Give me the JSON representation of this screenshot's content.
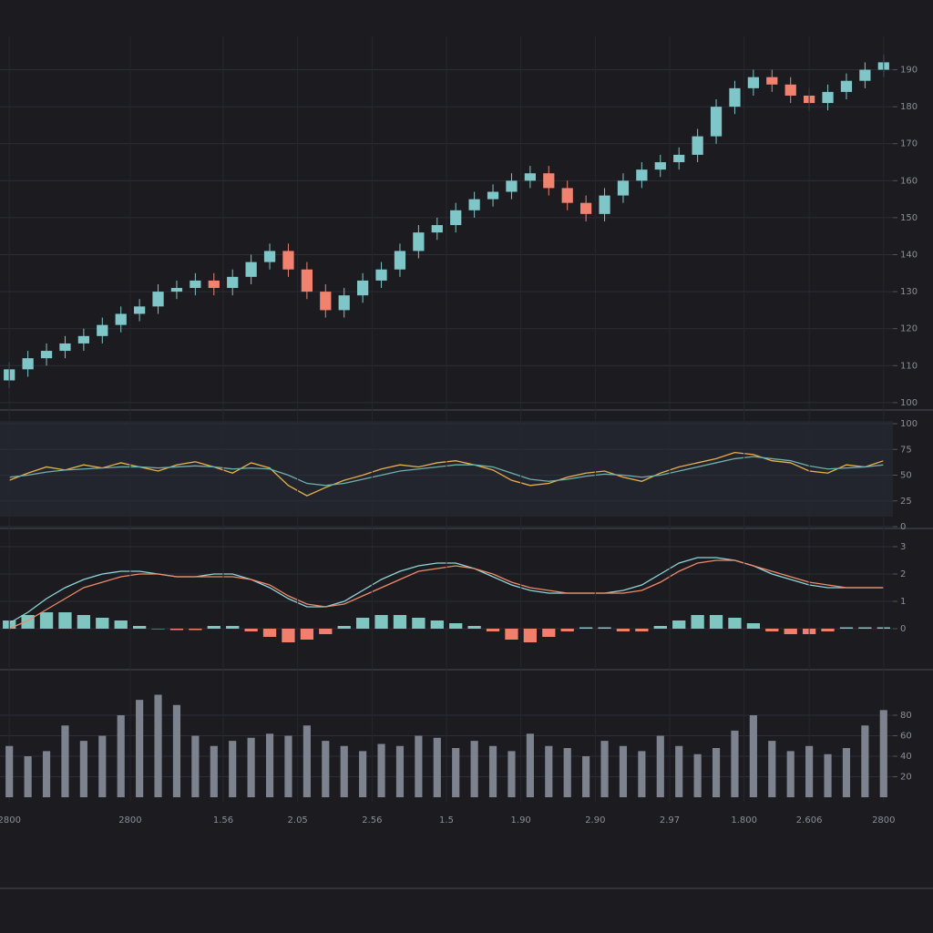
{
  "chart_data": [
    {
      "type": "candlestick",
      "up_color": "#7fc6c8",
      "down_color": "#f0826f",
      "open": [
        106,
        109,
        112,
        114,
        116,
        118,
        121,
        124,
        126,
        130,
        131,
        133,
        131,
        134,
        138,
        141,
        136,
        130,
        125,
        129,
        133,
        136,
        141,
        146,
        148,
        152,
        155,
        157,
        160,
        162,
        158,
        154,
        151,
        156,
        160,
        163,
        165,
        167,
        172,
        180,
        185,
        188,
        186,
        183,
        181,
        184,
        187,
        190
      ],
      "high": [
        111,
        114,
        116,
        118,
        120,
        123,
        126,
        128,
        132,
        133,
        135,
        135,
        136,
        140,
        143,
        143,
        138,
        132,
        131,
        135,
        138,
        143,
        148,
        150,
        154,
        157,
        159,
        162,
        164,
        164,
        160,
        156,
        158,
        162,
        165,
        167,
        169,
        174,
        182,
        187,
        190,
        190,
        188,
        185,
        186,
        189,
        192,
        194
      ],
      "low": [
        104,
        107,
        110,
        112,
        114,
        116,
        119,
        122,
        124,
        128,
        129,
        129,
        129,
        132,
        136,
        134,
        128,
        123,
        123,
        127,
        131,
        134,
        139,
        144,
        146,
        150,
        153,
        155,
        158,
        156,
        152,
        149,
        149,
        154,
        158,
        161,
        163,
        165,
        170,
        178,
        183,
        184,
        181,
        179,
        179,
        182,
        185,
        188
      ],
      "close": [
        109,
        112,
        114,
        116,
        118,
        121,
        124,
        126,
        130,
        131,
        133,
        131,
        134,
        138,
        141,
        136,
        130,
        125,
        129,
        133,
        136,
        141,
        146,
        148,
        152,
        155,
        157,
        160,
        162,
        158,
        154,
        151,
        156,
        160,
        163,
        165,
        167,
        172,
        180,
        185,
        188,
        186,
        183,
        181,
        184,
        187,
        190,
        192
      ],
      "xlim": [
        -0.5,
        47.5
      ],
      "ylim": [
        98,
        199
      ],
      "yticks": [
        100,
        110,
        120,
        130,
        140,
        150,
        160,
        170,
        180,
        190
      ]
    },
    {
      "type": "line",
      "xlim": [
        -0.5,
        47.5
      ],
      "ylim": [
        0,
        100
      ],
      "yticks": [
        0,
        25,
        50,
        75,
        100
      ],
      "series": [
        {
          "color": "#e8b04a",
          "values": [
            45,
            52,
            58,
            55,
            60,
            57,
            62,
            58,
            54,
            60,
            63,
            58,
            52,
            62,
            57,
            40,
            30,
            38,
            45,
            50,
            56,
            60,
            58,
            62,
            64,
            60,
            55,
            45,
            40,
            42,
            48,
            52,
            54,
            48,
            44,
            52,
            58,
            62,
            66,
            72,
            70,
            64,
            62,
            54,
            52,
            60,
            58,
            64
          ]
        },
        {
          "color": "#6fb0ad",
          "values": [
            48,
            50,
            53,
            55,
            56,
            57,
            58,
            58,
            57,
            58,
            59,
            58,
            56,
            57,
            56,
            50,
            42,
            40,
            42,
            46,
            50,
            54,
            56,
            58,
            60,
            60,
            58,
            52,
            46,
            44,
            46,
            49,
            51,
            50,
            48,
            50,
            54,
            58,
            62,
            66,
            68,
            66,
            64,
            59,
            56,
            57,
            58,
            60
          ]
        }
      ]
    },
    {
      "type": "combo",
      "xlim": [
        -0.5,
        47.5
      ],
      "ylim": [
        -1.5,
        3.5
      ],
      "yticks": [
        0,
        1,
        2,
        3
      ],
      "series": [
        {
          "type": "bar",
          "color": "#7fc6c0",
          "negative_color": "#f0806c",
          "values": [
            0.3,
            0.5,
            0.6,
            0.6,
            0.5,
            0.4,
            0.3,
            0.1,
            0.0,
            -0.05,
            -0.05,
            0.1,
            0.1,
            -0.1,
            -0.3,
            -0.5,
            -0.4,
            -0.2,
            0.1,
            0.4,
            0.5,
            0.5,
            0.4,
            0.3,
            0.2,
            0.1,
            -0.1,
            -0.4,
            -0.5,
            -0.3,
            -0.1,
            0.05,
            0.05,
            -0.1,
            -0.1,
            0.1,
            0.3,
            0.5,
            0.5,
            0.4,
            0.2,
            -0.1,
            -0.2,
            -0.2,
            -0.1,
            0.05,
            0.05,
            0.05
          ]
        },
        {
          "type": "line",
          "color": "#8fd6da",
          "values": [
            0.2,
            0.6,
            1.1,
            1.5,
            1.8,
            2.0,
            2.1,
            2.1,
            2.0,
            1.9,
            1.9,
            2.0,
            2.0,
            1.8,
            1.5,
            1.1,
            0.8,
            0.8,
            1.0,
            1.4,
            1.8,
            2.1,
            2.3,
            2.4,
            2.4,
            2.2,
            1.9,
            1.6,
            1.4,
            1.3,
            1.3,
            1.3,
            1.3,
            1.4,
            1.6,
            2.0,
            2.4,
            2.6,
            2.6,
            2.5,
            2.3,
            2.0,
            1.8,
            1.6,
            1.5,
            1.5,
            1.5,
            1.5
          ]
        },
        {
          "type": "line",
          "color": "#f08a6a",
          "values": [
            0.0,
            0.3,
            0.7,
            1.1,
            1.5,
            1.7,
            1.9,
            2.0,
            2.0,
            1.9,
            1.9,
            1.9,
            1.9,
            1.8,
            1.6,
            1.2,
            0.9,
            0.8,
            0.9,
            1.2,
            1.5,
            1.8,
            2.1,
            2.2,
            2.3,
            2.2,
            2.0,
            1.7,
            1.5,
            1.4,
            1.3,
            1.3,
            1.3,
            1.3,
            1.4,
            1.7,
            2.1,
            2.4,
            2.5,
            2.5,
            2.3,
            2.1,
            1.9,
            1.7,
            1.6,
            1.5,
            1.5,
            1.5
          ]
        }
      ]
    },
    {
      "type": "bar",
      "color": "#7d828f",
      "xlim": [
        -0.5,
        47.5
      ],
      "ylim": [
        0,
        120
      ],
      "yticks": [
        20,
        40,
        60,
        80
      ],
      "values": [
        50,
        40,
        45,
        70,
        55,
        60,
        80,
        95,
        100,
        90,
        60,
        50,
        55,
        58,
        62,
        60,
        70,
        55,
        50,
        45,
        52,
        50,
        60,
        58,
        48,
        55,
        50,
        45,
        62,
        50,
        48,
        40,
        55,
        50,
        45,
        60,
        50,
        42,
        48,
        65,
        80,
        55,
        45,
        50,
        42,
        48,
        70,
        85
      ],
      "xticks": [
        {
          "value": 0,
          "label": "2800"
        },
        {
          "value": 6.5,
          "label": "2800"
        },
        {
          "value": 11.5,
          "label": "1.56"
        },
        {
          "value": 15.5,
          "label": "2.05"
        },
        {
          "value": 19.5,
          "label": "2.56"
        },
        {
          "value": 23.5,
          "label": "1.5"
        },
        {
          "value": 27.5,
          "label": "1.90"
        },
        {
          "value": 31.5,
          "label": "2.90"
        },
        {
          "value": 35.5,
          "label": "2.97"
        },
        {
          "value": 39.5,
          "label": "1.800"
        },
        {
          "value": 43,
          "label": "2.606"
        },
        {
          "value": 47,
          "label": "2800"
        }
      ]
    }
  ]
}
